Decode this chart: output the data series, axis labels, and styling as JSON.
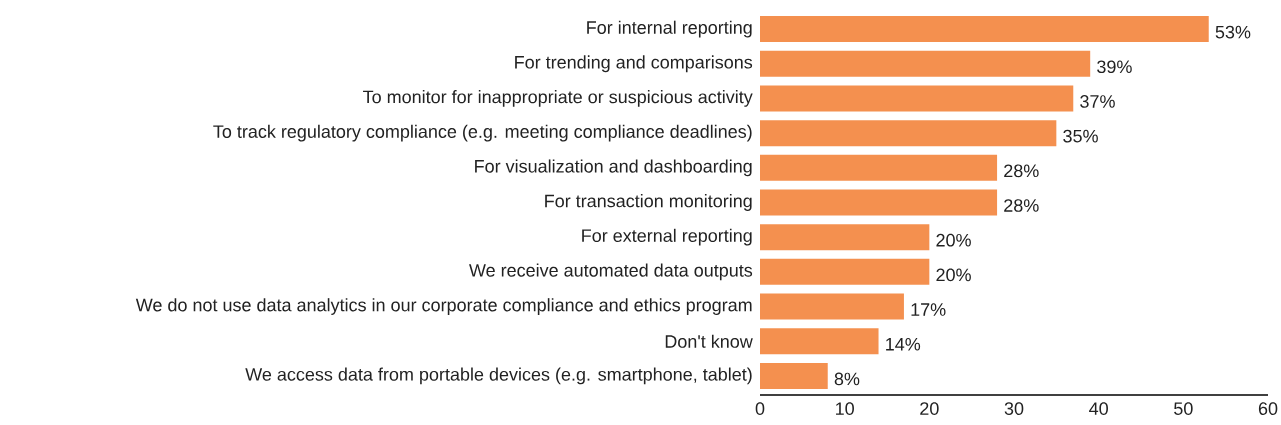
{
  "chart_data": {
    "type": "bar",
    "orientation": "horizontal",
    "categories": [
      "For internal reporting",
      "For trending and comparisons",
      "To monitor for inappropriate or suspicious activity",
      "To track regulatory compliance (e.g. meeting compliance deadlines)",
      "For visualization and dashboarding",
      "For transaction monitoring",
      "For external reporting",
      "We receive automated data outputs",
      "We do not use data analytics in our corporate compliance and ethics program",
      "Don't know",
      "We access data from portable devices (e.g. smartphone, tablet)"
    ],
    "values": [
      53,
      39,
      37,
      35,
      28,
      28,
      20,
      20,
      17,
      14,
      8
    ],
    "value_labels": [
      "53%",
      "39%",
      "37%",
      "35%",
      "28%",
      "28%",
      "20%",
      "20%",
      "17%",
      "14%",
      "8%"
    ],
    "color": "#f4904f",
    "xlim": [
      0,
      60
    ],
    "xticks": [
      0,
      10,
      20,
      30,
      40,
      50,
      60
    ]
  }
}
